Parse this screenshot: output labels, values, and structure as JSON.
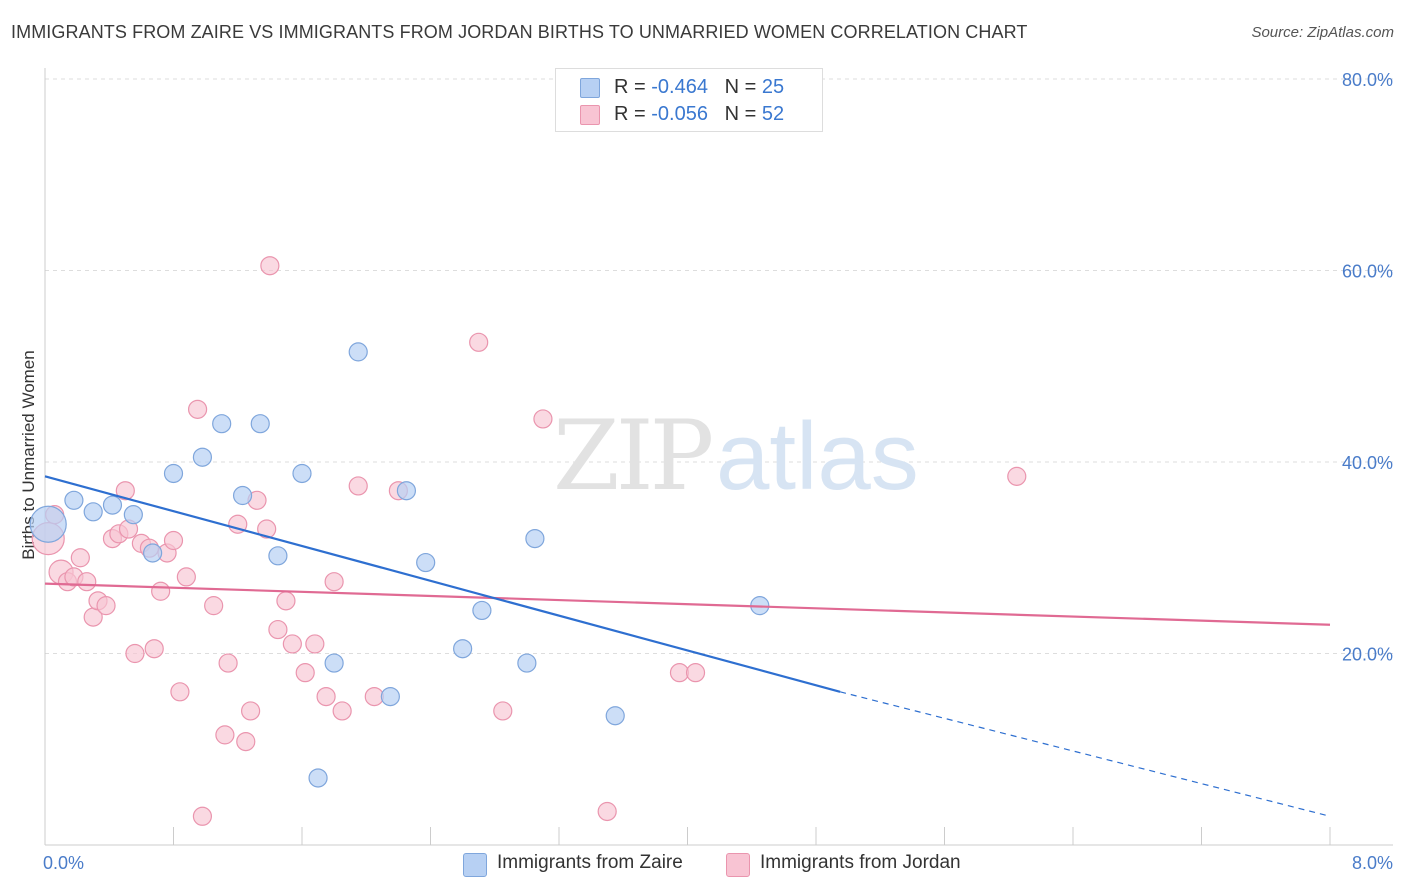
{
  "title": "IMMIGRANTS FROM ZAIRE VS IMMIGRANTS FROM JORDAN BIRTHS TO UNMARRIED WOMEN CORRELATION CHART",
  "source": "Source: ZipAtlas.com",
  "watermark": {
    "zip": "ZIP",
    "atlas": "atlas"
  },
  "legend_top": [
    {
      "r_label": "R = ",
      "r_value": "-0.464",
      "n_label": "N = ",
      "n_value": "25"
    },
    {
      "r_label": "R = ",
      "r_value": "-0.056",
      "n_label": "N = ",
      "n_value": "52"
    }
  ],
  "colors": {
    "zaire_fill": "#b7d0f3",
    "zaire_stroke": "#7fa6dc",
    "zaire_line": "#2e6fd0",
    "jordan_fill": "#f8c4d3",
    "jordan_stroke": "#ea95ae",
    "jordan_line": "#e06a93",
    "grid": "#dddddd",
    "tick_label": "#4a7cc9"
  },
  "chart_data": {
    "type": "scatter",
    "title": "IMMIGRANTS FROM ZAIRE VS IMMIGRANTS FROM JORDAN BIRTHS TO UNMARRIED WOMEN CORRELATION CHART",
    "xlabel": "",
    "ylabel": "Births to Unmarried Women",
    "xlim": [
      0,
      8
    ],
    "ylim": [
      0,
      80
    ],
    "x_tick_labels": [
      "0.0%",
      "8.0%"
    ],
    "y_ticks": [
      20,
      40,
      60,
      80
    ],
    "y_tick_labels": [
      "20.0%",
      "40.0%",
      "60.0%",
      "80.0%"
    ],
    "grid": true,
    "legend_position": "bottom-center",
    "series": [
      {
        "name": "Immigrants from Zaire",
        "r": -0.464,
        "n": 25,
        "trend": {
          "x0": 0.0,
          "y0": 38.5,
          "x1": 4.95,
          "y1": 16.0,
          "dash_x1": 8.0,
          "dash_y1": 3.0
        },
        "points": [
          [
            0.02,
            33.5,
            18
          ],
          [
            0.18,
            36.0,
            9
          ],
          [
            0.3,
            34.8,
            9
          ],
          [
            0.42,
            35.5,
            9
          ],
          [
            0.55,
            34.5,
            9
          ],
          [
            0.67,
            30.5,
            9
          ],
          [
            0.8,
            38.8,
            9
          ],
          [
            0.98,
            40.5,
            9
          ],
          [
            1.1,
            44.0,
            9
          ],
          [
            1.23,
            36.5,
            9
          ],
          [
            1.34,
            44.0,
            9
          ],
          [
            1.45,
            30.2,
            9
          ],
          [
            1.6,
            38.8,
            9
          ],
          [
            1.7,
            7.0,
            9
          ],
          [
            1.8,
            19.0,
            9
          ],
          [
            1.95,
            51.5,
            9
          ],
          [
            2.15,
            15.5,
            9
          ],
          [
            2.25,
            37.0,
            9
          ],
          [
            2.37,
            29.5,
            9
          ],
          [
            2.6,
            20.5,
            9
          ],
          [
            2.72,
            24.5,
            9
          ],
          [
            3.0,
            19.0,
            9
          ],
          [
            3.05,
            32.0,
            9
          ],
          [
            3.55,
            13.5,
            9
          ],
          [
            4.45,
            25.0,
            9
          ]
        ]
      },
      {
        "name": "Immigrants from Jordan",
        "r": -0.056,
        "n": 52,
        "trend": {
          "x0": 0.0,
          "y0": 27.3,
          "x1": 8.0,
          "y1": 23.0
        },
        "points": [
          [
            0.02,
            32.0,
            16
          ],
          [
            0.1,
            28.5,
            12
          ],
          [
            0.14,
            27.5,
            9
          ],
          [
            0.18,
            28.0,
            9
          ],
          [
            0.22,
            30.0,
            9
          ],
          [
            0.26,
            27.5,
            9
          ],
          [
            0.3,
            23.8,
            9
          ],
          [
            0.33,
            25.5,
            9
          ],
          [
            0.38,
            25.0,
            9
          ],
          [
            0.42,
            32.0,
            9
          ],
          [
            0.46,
            32.5,
            9
          ],
          [
            0.5,
            37.0,
            9
          ],
          [
            0.52,
            33.0,
            9
          ],
          [
            0.56,
            20.0,
            9
          ],
          [
            0.6,
            31.5,
            9
          ],
          [
            0.65,
            31.0,
            9
          ],
          [
            0.68,
            20.5,
            9
          ],
          [
            0.72,
            26.5,
            9
          ],
          [
            0.76,
            30.5,
            9
          ],
          [
            0.8,
            31.8,
            9
          ],
          [
            0.84,
            16.0,
            9
          ],
          [
            0.88,
            28.0,
            9
          ],
          [
            0.95,
            45.5,
            9
          ],
          [
            0.98,
            3.0,
            9
          ],
          [
            1.05,
            25.0,
            9
          ],
          [
            1.12,
            11.5,
            9
          ],
          [
            1.14,
            19.0,
            9
          ],
          [
            1.2,
            33.5,
            9
          ],
          [
            1.25,
            10.8,
            9
          ],
          [
            1.28,
            14.0,
            9
          ],
          [
            1.32,
            36.0,
            9
          ],
          [
            1.38,
            33.0,
            9
          ],
          [
            1.4,
            60.5,
            9
          ],
          [
            1.45,
            22.5,
            9
          ],
          [
            1.5,
            25.5,
            9
          ],
          [
            1.54,
            21.0,
            9
          ],
          [
            1.62,
            18.0,
            9
          ],
          [
            1.68,
            21.0,
            9
          ],
          [
            1.75,
            15.5,
            9
          ],
          [
            1.8,
            27.5,
            9
          ],
          [
            1.85,
            14.0,
            9
          ],
          [
            1.95,
            37.5,
            9
          ],
          [
            2.05,
            15.5,
            9
          ],
          [
            2.2,
            37.0,
            9
          ],
          [
            2.7,
            52.5,
            9
          ],
          [
            2.85,
            14.0,
            9
          ],
          [
            3.1,
            44.5,
            9
          ],
          [
            3.5,
            3.5,
            9
          ],
          [
            3.95,
            18.0,
            9
          ],
          [
            4.05,
            18.0,
            9
          ],
          [
            6.05,
            38.5,
            9
          ],
          [
            0.06,
            34.5,
            9
          ]
        ]
      }
    ]
  },
  "bottom_legend": [
    "Immigrants from Zaire",
    "Immigrants from Jordan"
  ]
}
